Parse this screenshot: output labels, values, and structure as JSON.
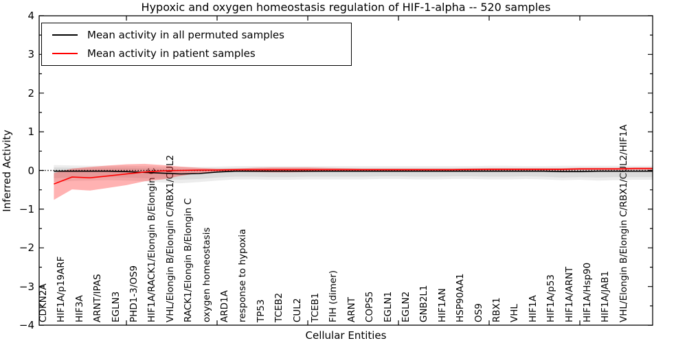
{
  "title": "Hypoxic and oxygen homeostasis regulation of HIF-1-alpha -- 520 samples",
  "legend": {
    "items": [
      {
        "label": "Mean activity in all permuted samples",
        "color": "#000000"
      },
      {
        "label": "Mean activity in patient samples",
        "color": "#ff0000"
      }
    ]
  },
  "axes": {
    "ylabel": "Inferred Activity",
    "xlabel": "Cellular Entities",
    "ytick_labels": [
      "4",
      "3",
      "2",
      "1",
      "0",
      "−1",
      "−2",
      "−3",
      "−4"
    ],
    "ytick_values": [
      4,
      3,
      2,
      1,
      0,
      -1,
      -2,
      -3,
      -4
    ],
    "minor_ytick_step": 0.5,
    "xtick_every": 5
  },
  "colors": {
    "background": "#ffffff",
    "permuted_line": "#000000",
    "patient_line": "#ff0000",
    "permuted_band": "rgba(128,128,128,0.15)",
    "patient_band": "rgba(255,0,0,0.3)",
    "zero_line": "#000000",
    "frame": "#000000"
  },
  "chart_data": {
    "type": "line",
    "title": "Hypoxic and oxygen homeostasis regulation of HIF-1-alpha -- 520 samples",
    "xlabel": "Cellular Entities",
    "ylabel": "Inferred Activity",
    "ylim": [
      -4,
      4
    ],
    "grid": false,
    "legend_position": "upper left",
    "zero_line": 0,
    "categories": [
      "CDKN2A",
      "HIF1A/p19ARF",
      "HIF3A",
      "ARNT/IPAS",
      "EGLN3",
      "PHD1-3/OS9",
      "HIF1A/RACK1/Elongin B/Elongin C",
      "VHL/Elongin B/Elongin C/RBX1/CUL2",
      "RACK1/Elongin B/Elongin C",
      "oxygen homeostasis",
      "ARD1A",
      "response to hypoxia",
      "TP53",
      "TCEB2",
      "CUL2",
      "TCEB1",
      "FIH (dimer)",
      "ARNT",
      "COPS5",
      "EGLN1",
      "EGLN2",
      "GNB2L1",
      "HIF1AN",
      "HSP90AA1",
      "OS9",
      "RBX1",
      "VHL",
      "HIF1A",
      "HIF1A/p53",
      "HIF1A/ARNT",
      "HIF1A/Hsp90",
      "HIF1A/JAB1",
      "VHL/Elongin B/Elongin C/RBX1/CUL2/HIF1A"
    ],
    "series": [
      {
        "name": "Mean activity in all permuted samples",
        "color": "#000000",
        "values": [
          -0.02,
          -0.02,
          -0.02,
          -0.02,
          -0.03,
          -0.05,
          -0.07,
          -0.09,
          -0.08,
          -0.04,
          -0.02,
          -0.02,
          -0.02,
          -0.02,
          -0.02,
          -0.02,
          -0.02,
          -0.02,
          -0.02,
          -0.02,
          -0.02,
          -0.02,
          -0.02,
          -0.02,
          -0.02,
          -0.02,
          -0.02,
          -0.02,
          -0.03,
          -0.03,
          -0.02,
          -0.02,
          -0.02
        ],
        "band_inner_upper": [
          0.08,
          0.07,
          0.07,
          0.07,
          0.07,
          0.06,
          0.05,
          0.04,
          0.04,
          0.05,
          0.06,
          0.06,
          0.06,
          0.06,
          0.06,
          0.06,
          0.06,
          0.06,
          0.06,
          0.06,
          0.06,
          0.06,
          0.06,
          0.06,
          0.06,
          0.06,
          0.06,
          0.06,
          0.06,
          0.06,
          0.06,
          0.06,
          0.07
        ],
        "band_inner_lower": [
          -0.2,
          -0.18,
          -0.17,
          -0.17,
          -0.18,
          -0.2,
          -0.22,
          -0.24,
          -0.22,
          -0.18,
          -0.16,
          -0.16,
          -0.17,
          -0.17,
          -0.16,
          -0.16,
          -0.16,
          -0.16,
          -0.15,
          -0.15,
          -0.16,
          -0.16,
          -0.15,
          -0.15,
          -0.16,
          -0.16,
          -0.15,
          -0.16,
          -0.18,
          -0.17,
          -0.18,
          -0.17,
          -0.17
        ],
        "band_outer_upper": [
          0.14,
          0.13,
          0.12,
          0.12,
          0.12,
          0.11,
          0.1,
          0.09,
          0.09,
          0.1,
          0.11,
          0.11,
          0.11,
          0.11,
          0.11,
          0.11,
          0.11,
          0.11,
          0.11,
          0.11,
          0.11,
          0.11,
          0.11,
          0.11,
          0.12,
          0.12,
          0.11,
          0.11,
          0.12,
          0.12,
          0.12,
          0.12,
          0.12
        ],
        "band_outer_lower": [
          -0.3,
          -0.27,
          -0.26,
          -0.25,
          -0.26,
          -0.28,
          -0.31,
          -0.33,
          -0.3,
          -0.26,
          -0.23,
          -0.23,
          -0.24,
          -0.24,
          -0.23,
          -0.23,
          -0.23,
          -0.23,
          -0.22,
          -0.22,
          -0.23,
          -0.23,
          -0.22,
          -0.22,
          -0.23,
          -0.23,
          -0.22,
          -0.23,
          -0.25,
          -0.24,
          -0.26,
          -0.25,
          -0.24
        ]
      },
      {
        "name": "Mean activity in patient samples",
        "color": "#ff0000",
        "values": [
          -0.35,
          -0.17,
          -0.19,
          -0.14,
          -0.09,
          -0.04,
          -0.01,
          0.0,
          0.01,
          0.01,
          0.02,
          0.02,
          0.02,
          0.02,
          0.02,
          0.02,
          0.02,
          0.02,
          0.02,
          0.02,
          0.02,
          0.02,
          0.02,
          0.03,
          0.03,
          0.03,
          0.03,
          0.03,
          0.03,
          0.04,
          0.04,
          0.04,
          0.05
        ],
        "band_upper": [
          -0.07,
          0.05,
          0.09,
          0.13,
          0.16,
          0.17,
          0.14,
          0.1,
          0.07,
          0.05,
          0.05,
          0.07,
          0.08,
          0.08,
          0.08,
          0.07,
          0.06,
          0.05,
          0.05,
          0.05,
          0.05,
          0.05,
          0.05,
          0.05,
          0.06,
          0.06,
          0.06,
          0.06,
          0.06,
          0.07,
          0.07,
          0.07,
          0.08
        ],
        "band_lower": [
          -0.76,
          -0.49,
          -0.52,
          -0.45,
          -0.38,
          -0.28,
          -0.23,
          -0.14,
          -0.07,
          -0.04,
          -0.03,
          -0.04,
          -0.05,
          -0.05,
          -0.04,
          -0.03,
          -0.02,
          -0.02,
          -0.01,
          -0.01,
          -0.01,
          -0.01,
          -0.01,
          -0.01,
          0.0,
          0.0,
          0.0,
          0.0,
          0.0,
          0.01,
          0.01,
          0.01,
          0.02
        ]
      }
    ]
  }
}
